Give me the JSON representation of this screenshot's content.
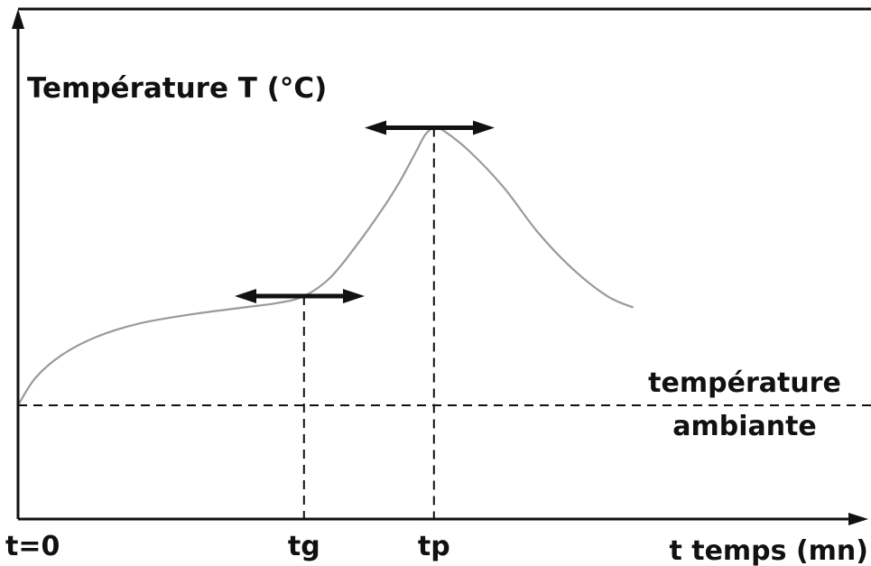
{
  "chart_data": {
    "type": "line",
    "ylabel": "Température T (°C)",
    "xlabel": "t temps (mn)",
    "x_ticks": [
      {
        "label": "t=0",
        "x": 0
      },
      {
        "label": "tg",
        "x": 33
      },
      {
        "label": "tp",
        "x": 48
      }
    ],
    "xlim": [
      0,
      96
    ],
    "ylim": [
      0,
      100
    ],
    "reference_line": {
      "label_line1": "température",
      "label_line2": "ambiante",
      "y": 25
    },
    "series": [
      {
        "color": "#9a9a9a",
        "points": [
          [
            0,
            25
          ],
          [
            2,
            31
          ],
          [
            5,
            36
          ],
          [
            9,
            40
          ],
          [
            14,
            43
          ],
          [
            20,
            45
          ],
          [
            26,
            46.5
          ],
          [
            30,
            47.5
          ],
          [
            33,
            49
          ],
          [
            36,
            53
          ],
          [
            39,
            60
          ],
          [
            42,
            68
          ],
          [
            44,
            74
          ],
          [
            46,
            81
          ],
          [
            47,
            84.5
          ],
          [
            48,
            86
          ],
          [
            49,
            85.5
          ],
          [
            52,
            81
          ],
          [
            56,
            73
          ],
          [
            60,
            63
          ],
          [
            64,
            55
          ],
          [
            68,
            49
          ],
          [
            71,
            46.5
          ]
        ]
      }
    ],
    "arrows": [
      {
        "name": "tg-arrow",
        "x_from": 25,
        "x_to": 40,
        "y": 49
      },
      {
        "name": "tp-arrow",
        "x_from": 40,
        "x_to": 55,
        "y": 86
      }
    ],
    "grid": false,
    "colors": {
      "axis": "#111111",
      "curve": "#9a9a9a",
      "arrow": "#111111"
    }
  }
}
